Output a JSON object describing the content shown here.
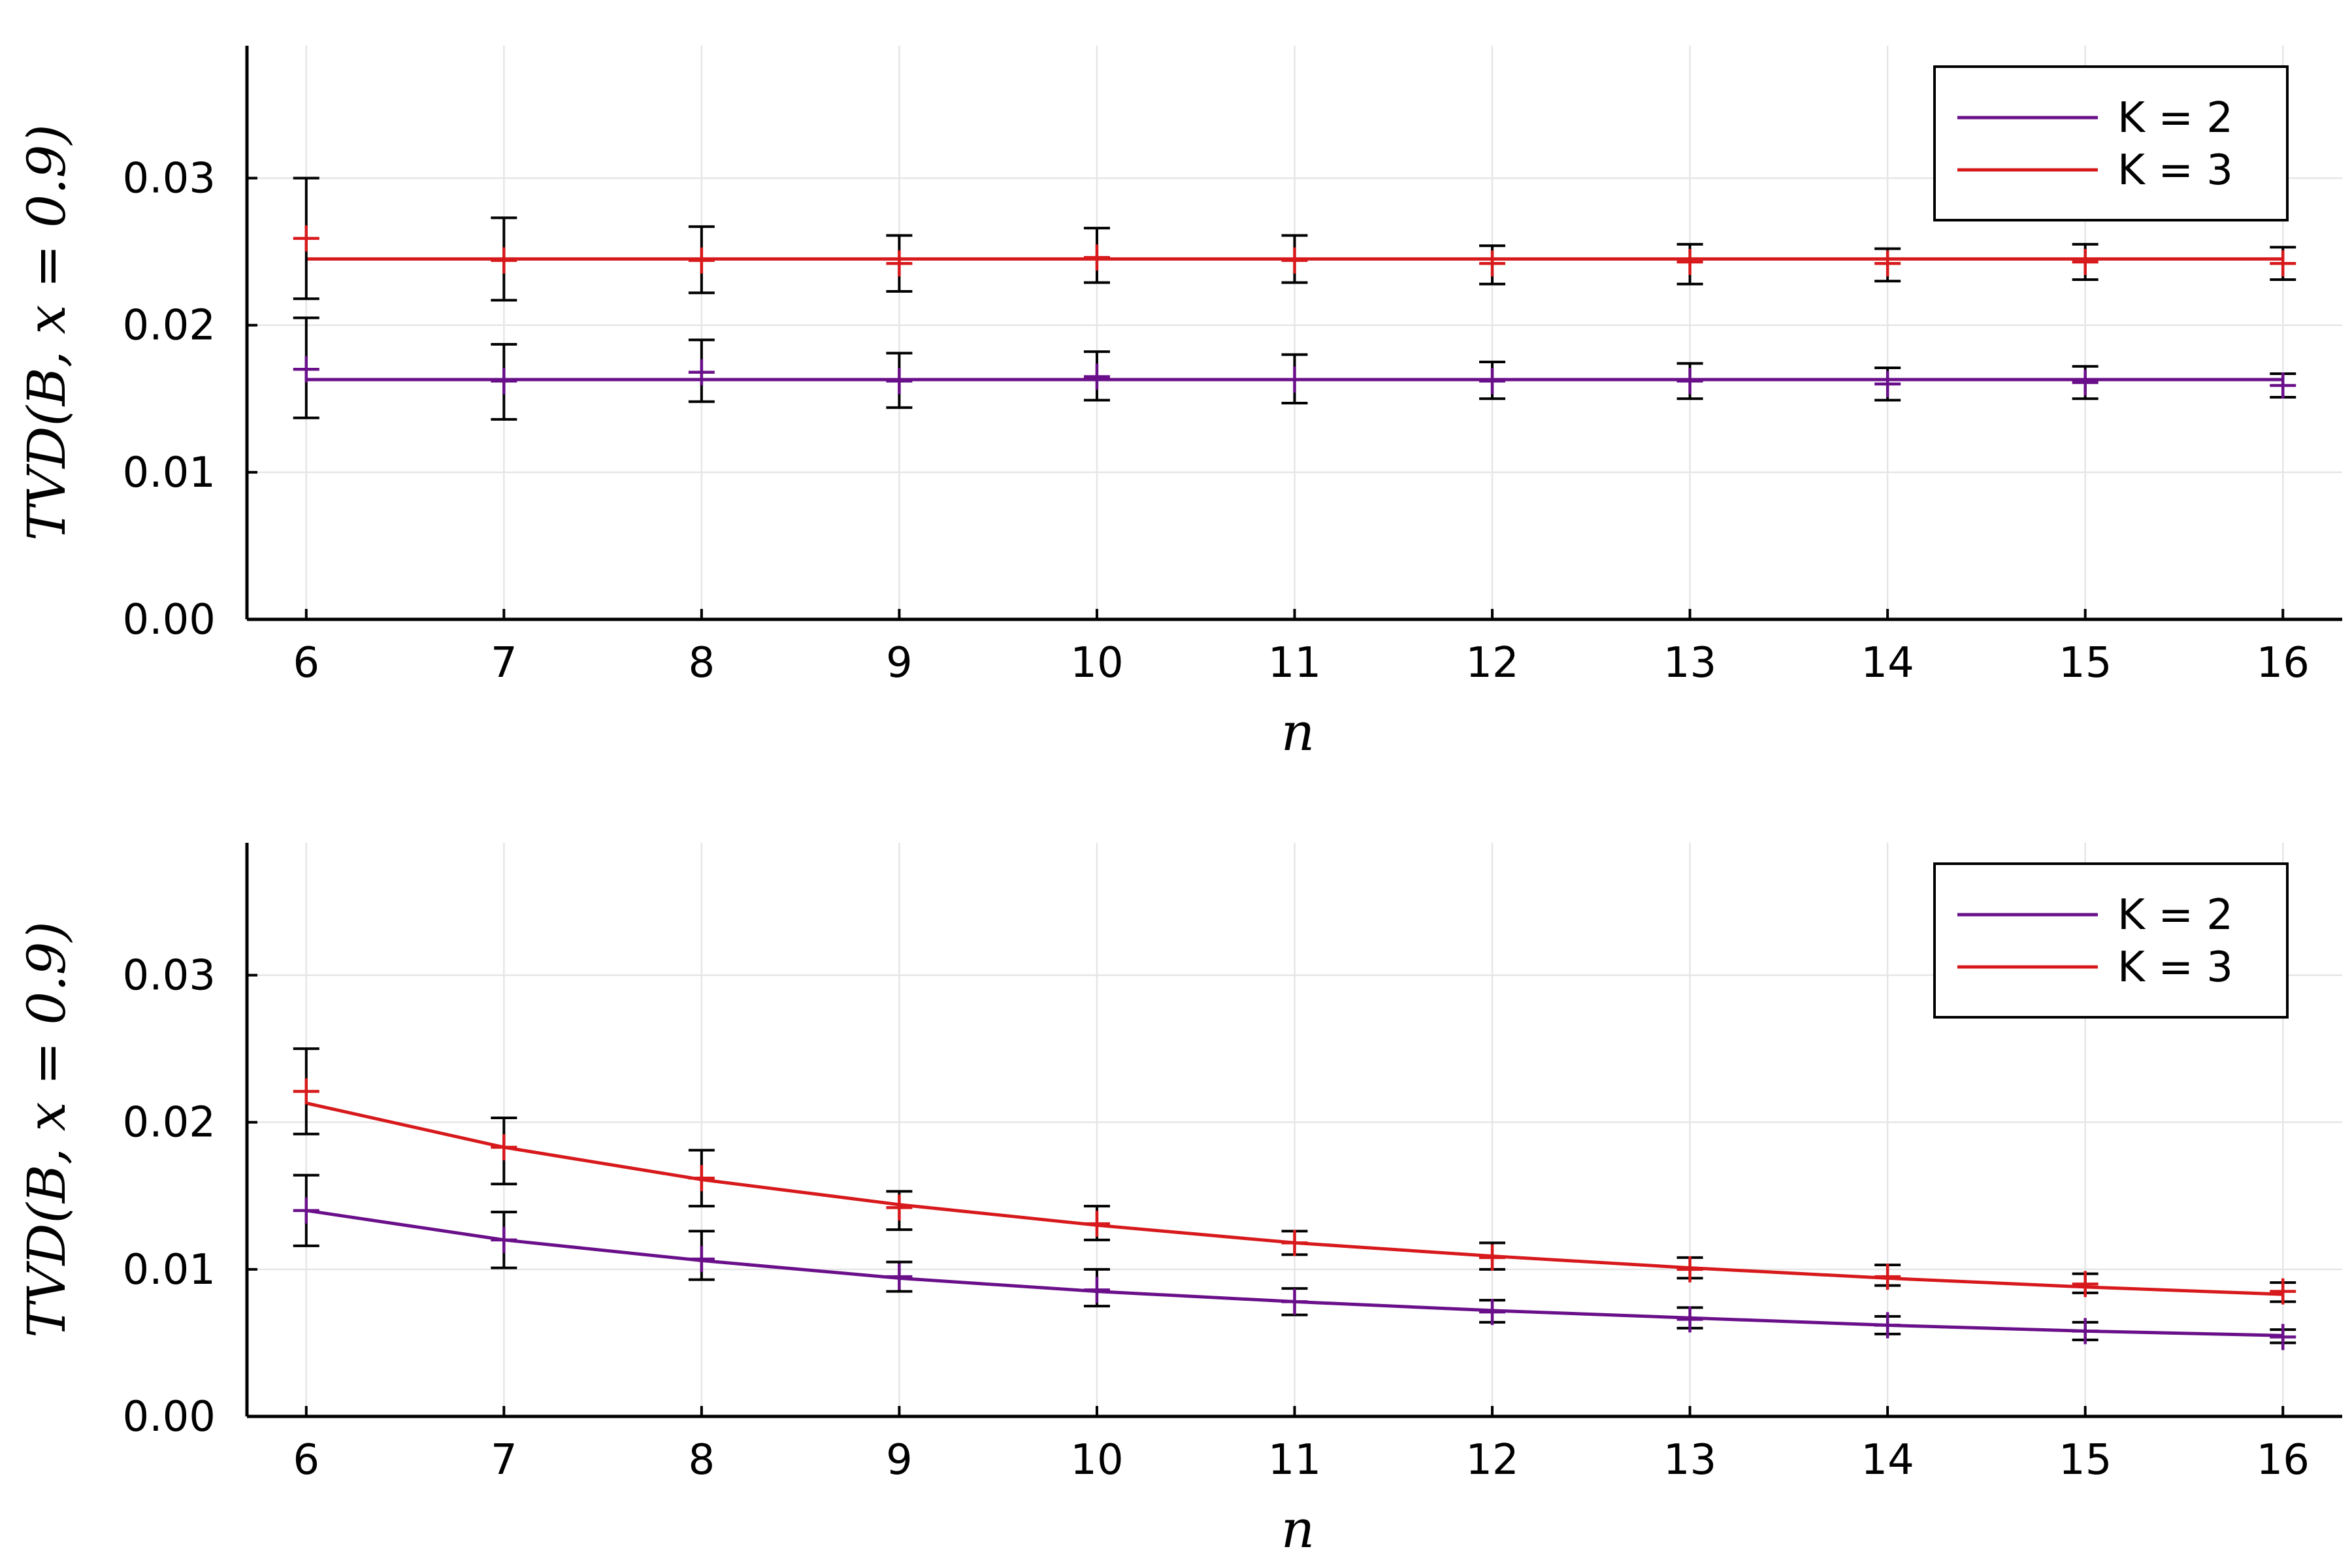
{
  "figure": {
    "panels": [
      {
        "id": "top"
      },
      {
        "id": "bottom"
      }
    ]
  },
  "chart_data": [
    {
      "type": "line",
      "xlabel": "n",
      "ylabel": "TVD(B, x = 0.9)",
      "x": [
        6,
        7,
        8,
        9,
        10,
        11,
        12,
        13,
        14,
        15,
        16
      ],
      "xlim": [
        5.7,
        16.3
      ],
      "ylim": [
        0,
        0.039
      ],
      "xticks": [
        "6",
        "7",
        "8",
        "9",
        "10",
        "11",
        "12",
        "13",
        "14",
        "15",
        "16"
      ],
      "yticks": [
        {
          "value": 0.0,
          "label": "0.00"
        },
        {
          "value": 0.01,
          "label": "0.01"
        },
        {
          "value": 0.02,
          "label": "0.02"
        },
        {
          "value": 0.03,
          "label": "0.03"
        }
      ],
      "grid": true,
      "legend_position": "top-right",
      "errorbar_color": "#000000",
      "series": [
        {
          "name": "K = 2",
          "color": "#6a0f8a",
          "fit": [
            0.0163,
            0.0163,
            0.0163,
            0.0163,
            0.0163,
            0.0163,
            0.0163,
            0.0163,
            0.0163,
            0.0163,
            0.0163
          ],
          "points": [
            0.017,
            0.0162,
            0.0168,
            0.0162,
            0.0165,
            0.0163,
            0.0162,
            0.0162,
            0.016,
            0.0161,
            0.0159
          ],
          "err_low": [
            0.0137,
            0.0136,
            0.0148,
            0.0144,
            0.0149,
            0.0147,
            0.015,
            0.015,
            0.0149,
            0.015,
            0.0151
          ],
          "err_high": [
            0.0205,
            0.0187,
            0.019,
            0.0181,
            0.0182,
            0.018,
            0.0175,
            0.0174,
            0.0171,
            0.0172,
            0.0167
          ]
        },
        {
          "name": "K = 3",
          "color": "#d7191c",
          "fit": [
            0.0245,
            0.0245,
            0.0245,
            0.0245,
            0.0245,
            0.0245,
            0.0245,
            0.0245,
            0.0245,
            0.0245,
            0.0245
          ],
          "points": [
            0.0259,
            0.0244,
            0.0244,
            0.0242,
            0.0246,
            0.0244,
            0.0242,
            0.0243,
            0.0242,
            0.0243,
            0.0242
          ],
          "err_low": [
            0.0218,
            0.0217,
            0.0222,
            0.0223,
            0.0229,
            0.0229,
            0.0228,
            0.0228,
            0.023,
            0.0231,
            0.0231
          ],
          "err_high": [
            0.03,
            0.0273,
            0.0267,
            0.0261,
            0.0266,
            0.0261,
            0.0254,
            0.0255,
            0.0252,
            0.0255,
            0.0253
          ]
        }
      ]
    },
    {
      "type": "line",
      "xlabel": "n",
      "ylabel": "TVD(B, x = 0.9)",
      "x": [
        6,
        7,
        8,
        9,
        10,
        11,
        12,
        13,
        14,
        15,
        16
      ],
      "xlim": [
        5.7,
        16.3
      ],
      "ylim": [
        0,
        0.039
      ],
      "xticks": [
        "6",
        "7",
        "8",
        "9",
        "10",
        "11",
        "12",
        "13",
        "14",
        "15",
        "16"
      ],
      "yticks": [
        {
          "value": 0.0,
          "label": "0.00"
        },
        {
          "value": 0.01,
          "label": "0.01"
        },
        {
          "value": 0.02,
          "label": "0.02"
        },
        {
          "value": 0.03,
          "label": "0.03"
        }
      ],
      "grid": true,
      "legend_position": "top-right",
      "errorbar_color": "#000000",
      "series": [
        {
          "name": "K = 2",
          "color": "#6a0f8a",
          "fit": [
            0.014,
            0.012,
            0.0106,
            0.0094,
            0.0085,
            0.0078,
            0.0072,
            0.0067,
            0.0062,
            0.0058,
            0.0055
          ],
          "points": [
            0.014,
            0.012,
            0.0107,
            0.0095,
            0.0086,
            0.0078,
            0.0071,
            0.0066,
            0.0062,
            0.0058,
            0.0054
          ],
          "err_low": [
            0.0116,
            0.0101,
            0.0093,
            0.0085,
            0.0075,
            0.0069,
            0.0064,
            0.006,
            0.0056,
            0.0052,
            0.005
          ],
          "err_high": [
            0.0164,
            0.0139,
            0.0126,
            0.0105,
            0.01,
            0.0087,
            0.0079,
            0.0074,
            0.0068,
            0.0064,
            0.0059
          ]
        },
        {
          "name": "K = 3",
          "color": "#d7191c",
          "fit": [
            0.0213,
            0.0183,
            0.0161,
            0.0144,
            0.013,
            0.0118,
            0.0109,
            0.0101,
            0.0094,
            0.0088,
            0.0083
          ],
          "points": [
            0.0221,
            0.0183,
            0.0162,
            0.0142,
            0.0131,
            0.0118,
            0.0108,
            0.01,
            0.0095,
            0.009,
            0.0085
          ],
          "err_low": [
            0.0192,
            0.0158,
            0.0143,
            0.0127,
            0.012,
            0.011,
            0.01,
            0.0094,
            0.0089,
            0.0084,
            0.0078
          ],
          "err_high": [
            0.025,
            0.0203,
            0.0181,
            0.0153,
            0.0143,
            0.0126,
            0.0118,
            0.0108,
            0.0103,
            0.0097,
            0.0091
          ]
        }
      ]
    }
  ]
}
